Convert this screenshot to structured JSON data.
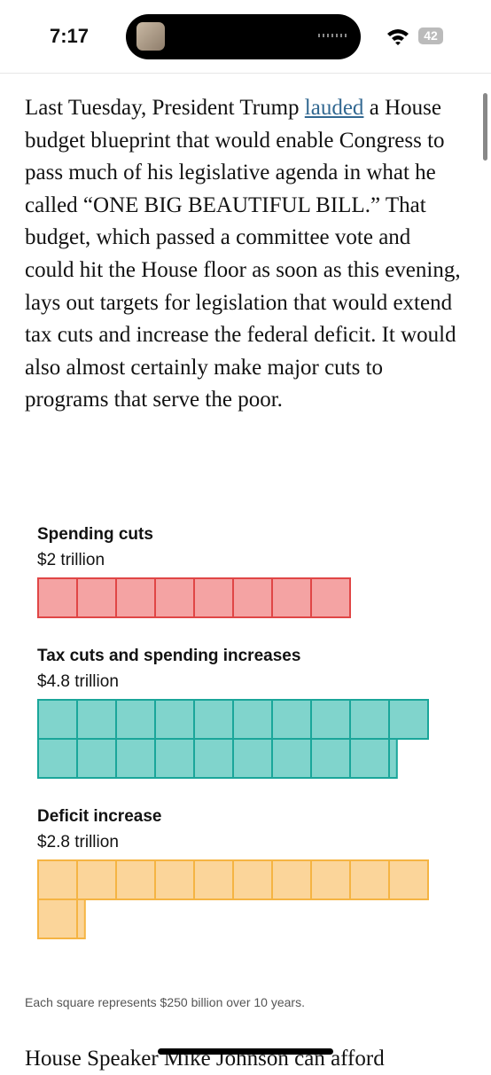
{
  "status_bar": {
    "time": "7:17",
    "battery": "42"
  },
  "article": {
    "paragraph_1": {
      "before_link": "Last Tuesday, President Trump ",
      "link": "lauded",
      "after_link": " a House budget blueprint that would enable Congress to pass much of his legislative agenda in what he called “ONE BIG BEAUTIFUL BILL.” That budget, which passed a committee vote and could hit the House floor as soon as this evening, lays out targets for legislation that would extend tax cuts and increase the federal deficit. It would also almost certainly make major cuts to programs that serve the poor."
    },
    "paragraph_2": "House Speaker Mike Johnson can afford"
  },
  "graphic": {
    "items": [
      {
        "label": "Spending cuts",
        "value_label": "$2 trillion",
        "value": 2,
        "fill": "#f4a3a3",
        "stroke": "#e04646"
      },
      {
        "label": "Tax cuts and spending increases",
        "value_label": "$4.8 trillion",
        "value": 4.8,
        "fill": "#80d4cc",
        "stroke": "#1aa69a"
      },
      {
        "label": "Deficit increase",
        "value_label": "$2.8 trillion",
        "value": 2.8,
        "fill": "#fbd59a",
        "stroke": "#f5b443"
      }
    ],
    "note": "Each square represents $250 billion over 10 years."
  }
}
